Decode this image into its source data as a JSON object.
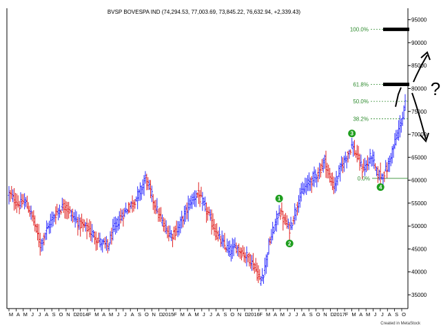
{
  "chart_data": {
    "type": "bar",
    "title": "BVSP BOVESPA IND (74,294.53, 77,003.69, 73,845.22, 76,632.94, +2,339.43)",
    "footer": "Created in MetaStock",
    "ylim": [
      32000,
      97500
    ],
    "y_ticks": [
      35000,
      40000,
      45000,
      50000,
      55000,
      60000,
      65000,
      70000,
      75000,
      80000,
      85000,
      90000,
      95000
    ],
    "x_tick_labels": [
      "M",
      "A",
      "M",
      "J",
      "J",
      "A",
      "S",
      "O",
      "N",
      "D",
      "2014",
      "F",
      "M",
      "A",
      "M",
      "J",
      "J",
      "A",
      "S",
      "O",
      "N",
      "D",
      "2015",
      "F",
      "M",
      "A",
      "M",
      "J",
      "J",
      "A",
      "S",
      "O",
      "N",
      "D",
      "2016",
      "F",
      "M",
      "A",
      "M",
      "J",
      "J",
      "A",
      "S",
      "O",
      "N",
      "D",
      "2017",
      "F",
      "M",
      "A",
      "M",
      "J",
      "J",
      "A",
      "S",
      "O"
    ],
    "grid": false,
    "up_color": "#2a2aff",
    "down_color": "#e02020",
    "close_anchors": [
      [
        0,
        57000
      ],
      [
        8,
        54500
      ],
      [
        12,
        55500
      ],
      [
        18,
        52000
      ],
      [
        24,
        46000
      ],
      [
        28,
        48500
      ],
      [
        33,
        51500
      ],
      [
        38,
        53500
      ],
      [
        43,
        54500
      ],
      [
        48,
        52500
      ],
      [
        54,
        50500
      ],
      [
        60,
        49500
      ],
      [
        65,
        48000
      ],
      [
        70,
        46500
      ],
      [
        76,
        45500
      ],
      [
        80,
        49000
      ],
      [
        85,
        51500
      ],
      [
        90,
        53500
      ],
      [
        95,
        55000
      ],
      [
        100,
        57000
      ],
      [
        105,
        60500
      ],
      [
        110,
        56500
      ],
      [
        115,
        52500
      ],
      [
        120,
        49500
      ],
      [
        125,
        48000
      ],
      [
        130,
        49500
      ],
      [
        135,
        52500
      ],
      [
        140,
        55500
      ],
      [
        145,
        57000
      ],
      [
        150,
        54500
      ],
      [
        155,
        51500
      ],
      [
        160,
        48000
      ],
      [
        165,
        46000
      ],
      [
        170,
        44500
      ],
      [
        175,
        45500
      ],
      [
        180,
        44000
      ],
      [
        185,
        43000
      ],
      [
        190,
        40500
      ],
      [
        193,
        38000
      ],
      [
        196,
        40000
      ],
      [
        200,
        46000
      ],
      [
        205,
        50500
      ],
      [
        208,
        53500
      ],
      [
        212,
        51000
      ],
      [
        216,
        49500
      ],
      [
        219,
        52000
      ],
      [
        223,
        56000
      ],
      [
        228,
        58500
      ],
      [
        234,
        60500
      ],
      [
        239,
        62000
      ],
      [
        243,
        64500
      ],
      [
        246,
        61000
      ],
      [
        250,
        58500
      ],
      [
        255,
        62500
      ],
      [
        260,
        65500
      ],
      [
        264,
        67500
      ],
      [
        268,
        65000
      ],
      [
        272,
        62500
      ],
      [
        276,
        63500
      ],
      [
        279,
        65500
      ],
      [
        283,
        61500
      ],
      [
        287,
        61000
      ],
      [
        291,
        62500
      ],
      [
        295,
        66500
      ],
      [
        299,
        70000
      ],
      [
        303,
        74000
      ],
      [
        305,
        76500
      ]
    ],
    "ohlc_last_bar": {
      "open": 74294.53,
      "high": 77003.69,
      "low": 73845.22,
      "close": 76632.94,
      "change": 2339.43
    },
    "fibonacci_levels": [
      {
        "label": "100.0%",
        "value": 92900
      },
      {
        "label": "61.8%",
        "value": 80900
      },
      {
        "label": "50.0%",
        "value": 77200
      },
      {
        "label": "38.2%",
        "value": 73400
      },
      {
        "label": "0.0%",
        "value": 60400
      }
    ],
    "wave_labels": [
      {
        "label": "1",
        "bar": 208,
        "value": 56000
      },
      {
        "label": "2",
        "bar": 216,
        "value": 46200
      },
      {
        "label": "3",
        "bar": 264,
        "value": 70200
      },
      {
        "label": "4",
        "bar": 286,
        "value": 58500
      }
    ],
    "annotation_question": "?"
  }
}
